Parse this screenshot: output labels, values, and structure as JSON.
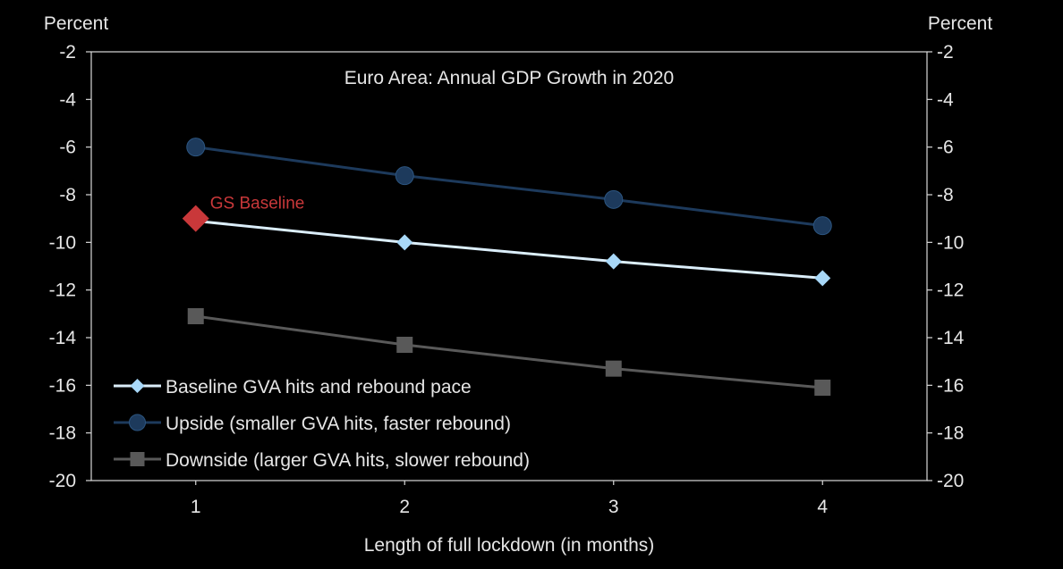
{
  "chart_data": {
    "type": "line",
    "title": "Euro Area: Annual GDP Growth in 2020",
    "xlabel": "Length of full lockdown (in months)",
    "ylabel_left": "Percent",
    "ylabel_right": "Percent",
    "x": [
      1,
      2,
      3,
      4
    ],
    "x_tick_labels": [
      "1",
      "2",
      "3",
      "4"
    ],
    "xlim": [
      0.5,
      4.5
    ],
    "ylim": [
      -20,
      -2
    ],
    "y_ticks": [
      -2,
      -4,
      -6,
      -8,
      -10,
      -12,
      -14,
      -16,
      -18,
      -20
    ],
    "grid": false,
    "legend_position": "bottom-left",
    "series": [
      {
        "name": "Baseline GVA hits and rebound pace",
        "values": [
          -9.1,
          -10.0,
          -10.8,
          -11.5
        ],
        "color": "#dbeefa",
        "marker": "diamond",
        "marker_color": "#a8d8f8"
      },
      {
        "name": "Upside (smaller GVA hits, faster rebound)",
        "values": [
          -6.0,
          -7.2,
          -8.2,
          -9.3
        ],
        "color": "#1d3a5c",
        "marker": "circle",
        "marker_color": "#1d3a5c"
      },
      {
        "name": "Downside (larger GVA hits, slower rebound)",
        "values": [
          -13.1,
          -14.3,
          -15.3,
          -16.1
        ],
        "color": "#595959",
        "marker": "square",
        "marker_color": "#595959"
      }
    ],
    "annotations": [
      {
        "text": "GS Baseline",
        "x": 1,
        "y": -9.0,
        "marker": "diamond",
        "color": "#c9383a"
      }
    ]
  }
}
